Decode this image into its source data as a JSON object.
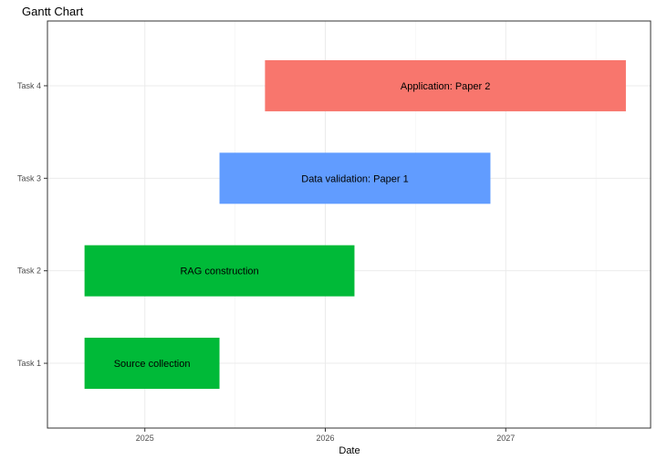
{
  "chart_data": {
    "type": "bar",
    "orientation": "horizontal",
    "title": "Gantt Chart",
    "xlabel": "Date",
    "ylabel": "",
    "x_ticks": [
      "2025",
      "2026",
      "2027"
    ],
    "x_tick_dates": [
      "2025-01-01",
      "2026-01-01",
      "2027-01-01"
    ],
    "xlim": [
      "2024-06-18",
      "2027-10-21"
    ],
    "categories": [
      "Task 1",
      "Task 2",
      "Task 3",
      "Task 4"
    ],
    "tasks": [
      {
        "task": "Task 1",
        "label": "Source collection",
        "start": "2024-09-01",
        "end": "2025-06-01",
        "color": "#00BA38"
      },
      {
        "task": "Task 2",
        "label": "RAG construction",
        "start": "2024-09-01",
        "end": "2026-03-01",
        "color": "#00BA38"
      },
      {
        "task": "Task 3",
        "label": "Data validation: Paper 1",
        "start": "2025-06-01",
        "end": "2026-12-01",
        "color": "#619CFF"
      },
      {
        "task": "Task 4",
        "label": "Application: Paper 2",
        "start": "2025-09-01",
        "end": "2027-09-01",
        "color": "#F8766D"
      }
    ],
    "grid": true,
    "legend": "none"
  }
}
